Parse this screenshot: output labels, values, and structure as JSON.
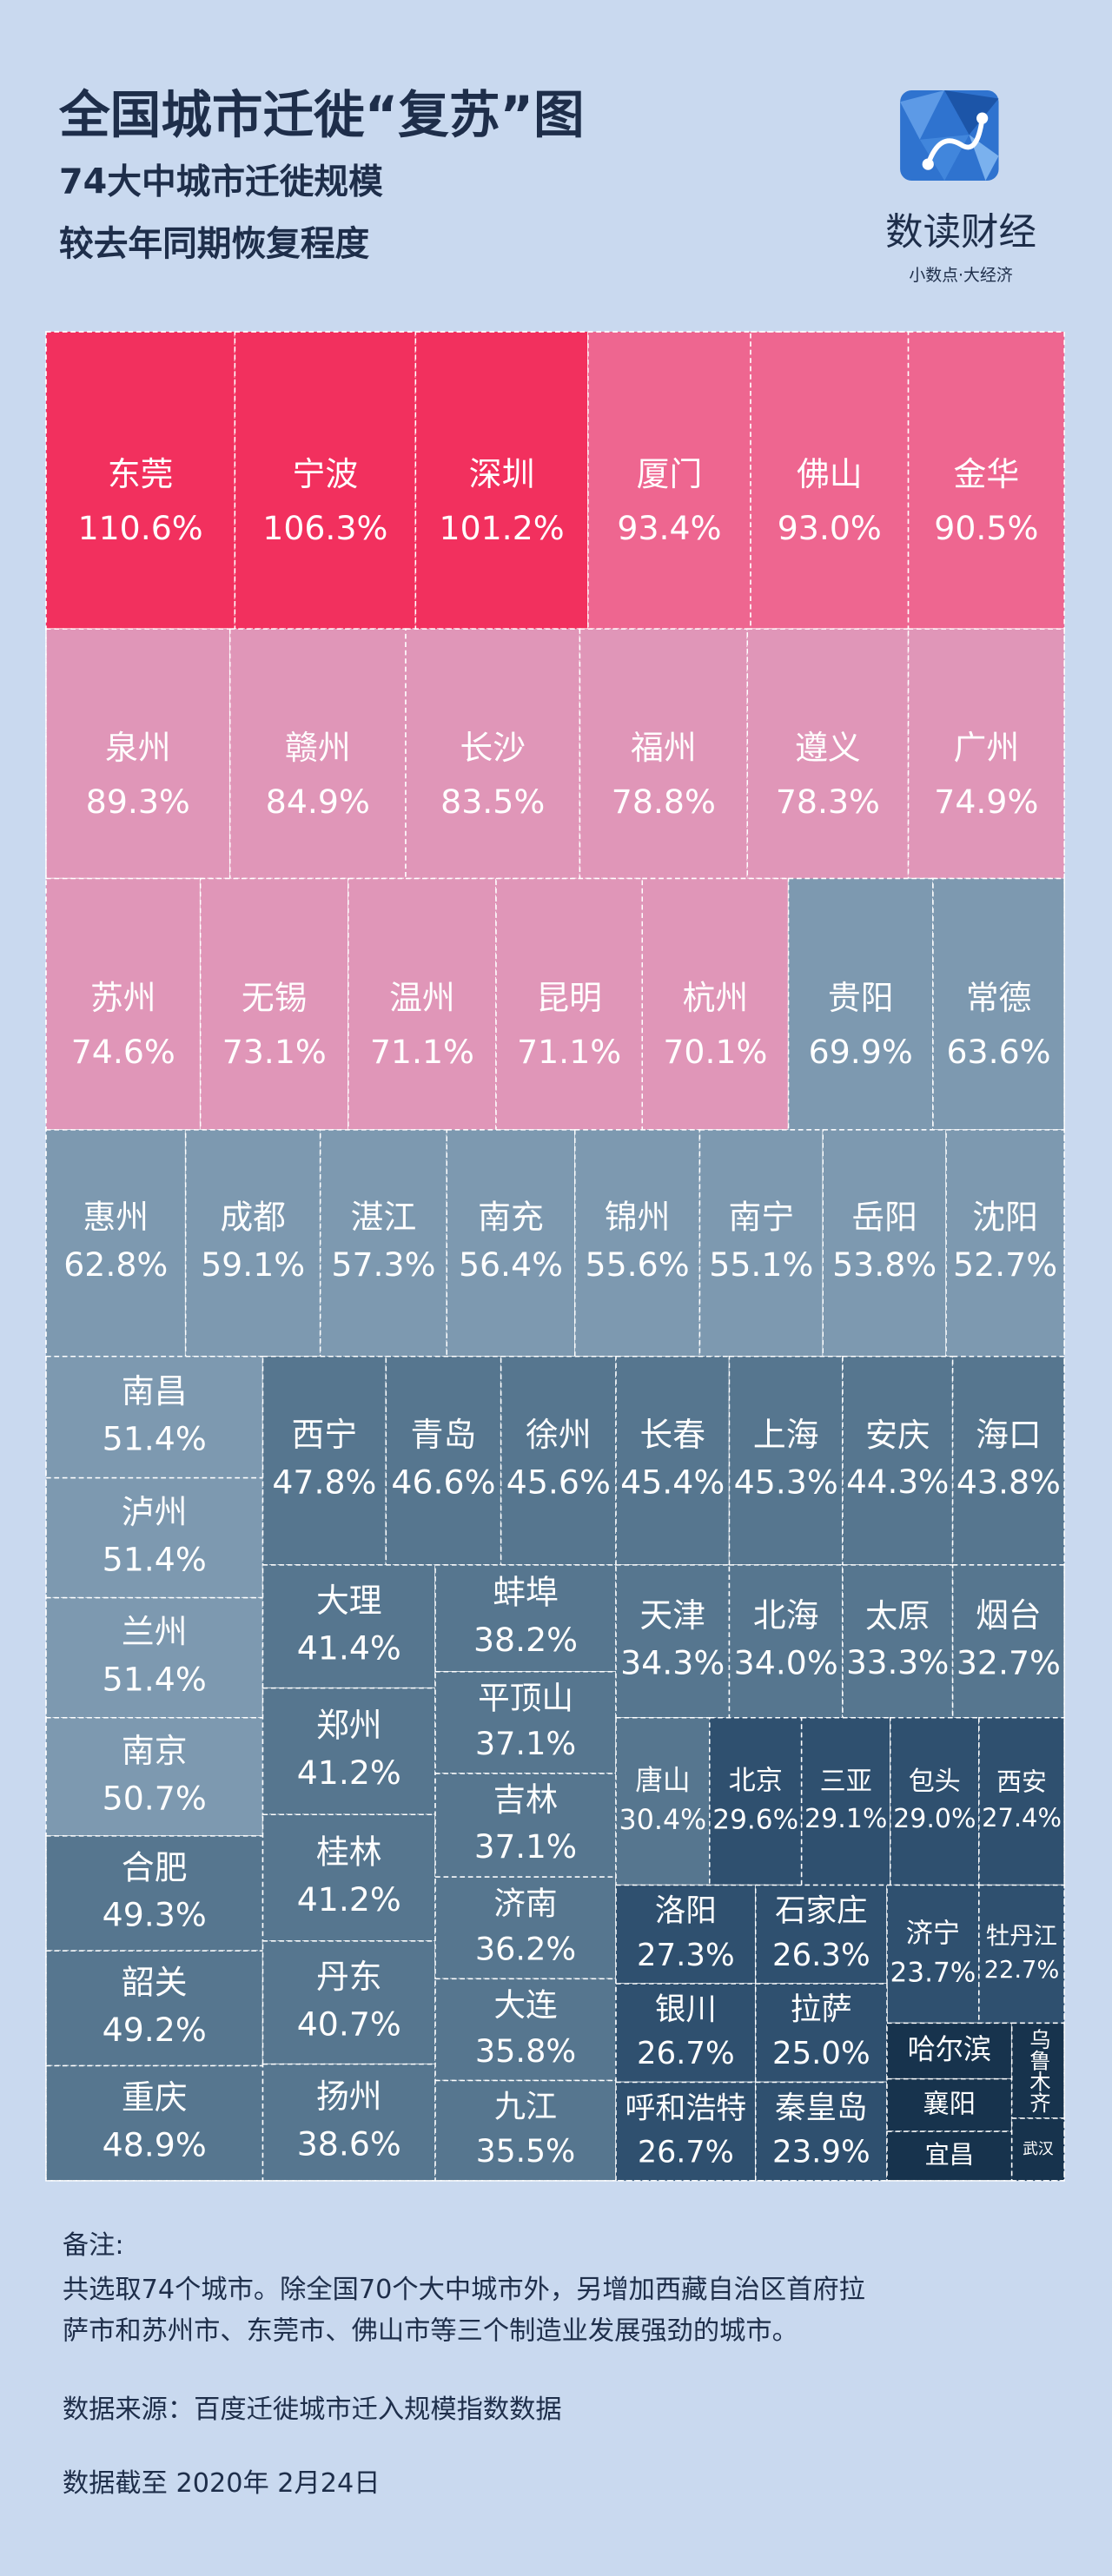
{
  "chart_data": {
    "type": "treemap",
    "title": "全国城市迁徙“复苏”图",
    "subtitle": [
      "74大中城市迁徙规模",
      "较去年同期恢复程度"
    ],
    "categories": [
      "东莞",
      "宁波",
      "深圳",
      "厦门",
      "佛山",
      "金华",
      "泉州",
      "赣州",
      "长沙",
      "福州",
      "遵义",
      "广州",
      "苏州",
      "无锡",
      "温州",
      "昆明",
      "杭州",
      "贵阳",
      "常德",
      "惠州",
      "成都",
      "湛江",
      "南充",
      "锦州",
      "南宁",
      "岳阳",
      "沈阳",
      "南昌",
      "泸州",
      "兰州",
      "南京",
      "合肥",
      "韶关",
      "重庆",
      "西宁",
      "青岛",
      "徐州",
      "长春",
      "上海",
      "安庆",
      "海口",
      "大理",
      "郑州",
      "桂林",
      "丹东",
      "扬州",
      "蚌埠",
      "平顶山",
      "吉林",
      "济南",
      "大连",
      "九江",
      "天津",
      "北海",
      "太原",
      "烟台",
      "唐山",
      "北京",
      "三亚",
      "包头",
      "西安",
      "洛阳",
      "石家庄",
      "济宁",
      "牡丹江",
      "银川",
      "拉萨",
      "呼和浩特",
      "秦皇岛",
      "哈尔滨",
      "襄阳",
      "宜昌",
      "乌鲁木齐",
      "武汉"
    ],
    "values": [
      110.6,
      106.3,
      101.2,
      93.4,
      93.0,
      90.5,
      89.3,
      84.9,
      83.5,
      78.8,
      78.3,
      74.9,
      74.6,
      73.1,
      71.1,
      71.1,
      70.1,
      69.9,
      63.6,
      62.8,
      59.1,
      57.3,
      56.4,
      55.6,
      55.1,
      53.8,
      52.7,
      51.4,
      51.4,
      51.4,
      50.7,
      49.3,
      49.2,
      48.9,
      47.8,
      46.6,
      45.6,
      45.4,
      45.3,
      44.3,
      43.8,
      41.4,
      41.2,
      41.2,
      40.7,
      38.6,
      38.2,
      37.1,
      37.1,
      36.2,
      35.8,
      35.5,
      34.3,
      34.0,
      33.3,
      32.7,
      30.4,
      29.6,
      29.1,
      29.0,
      27.4,
      27.3,
      26.3,
      23.7,
      22.7,
      26.7,
      25.0,
      26.7,
      23.9,
      20,
      15,
      14,
      18,
      5
    ],
    "value_labels": [
      "110.6%",
      "106.3%",
      "101.2%",
      "93.4%",
      "93.0%",
      "90.5%",
      "89.3%",
      "84.9%",
      "83.5%",
      "78.8%",
      "78.3%",
      "74.9%",
      "74.6%",
      "73.1%",
      "71.1%",
      "71.1%",
      "70.1%",
      "69.9%",
      "63.6%",
      "62.8%",
      "59.1%",
      "57.3%",
      "56.4%",
      "55.6%",
      "55.1%",
      "53.8%",
      "52.7%",
      "51.4%",
      "51.4%",
      "51.4%",
      "50.7%",
      "49.3%",
      "49.2%",
      "48.9%",
      "47.8%",
      "46.6%",
      "45.6%",
      "45.4%",
      "45.3%",
      "44.3%",
      "43.8%",
      "41.4%",
      "41.2%",
      "41.2%",
      "40.7%",
      "38.6%",
      "38.2%",
      "37.1%",
      "37.1%",
      "36.2%",
      "35.8%",
      "35.5%",
      "34.3%",
      "34.0%",
      "33.3%",
      "32.7%",
      "30.4%",
      "29.6%",
      "29.1%",
      "29.0%",
      "27.4%",
      "27.3%",
      "26.3%",
      "23.7%",
      "22.7%",
      "26.7%",
      "25.0%",
      "26.7%",
      "23.9%",
      null,
      null,
      null,
      null,
      null
    ],
    "colors": [
      "#f2305e",
      "#f2305e",
      "#f2305e",
      "#ee6690",
      "#ee6690",
      "#ee6690",
      "#e096b8",
      "#e096b8",
      "#e096b8",
      "#e096b8",
      "#e096b8",
      "#e096b8",
      "#e096b8",
      "#e096b8",
      "#e096b8",
      "#e096b8",
      "#e096b8",
      "#7d99b0",
      "#7d99b0",
      "#7d99b0",
      "#7d99b0",
      "#7d99b0",
      "#7d99b0",
      "#7d99b0",
      "#7d99b0",
      "#7d99b0",
      "#7d99b0",
      "#7d99b0",
      "#7d99b0",
      "#7d99b0",
      "#7d99b0",
      "#56768f",
      "#56768f",
      "#56768f",
      "#56768f",
      "#56768f",
      "#56768f",
      "#56768f",
      "#56768f",
      "#56768f",
      "#56768f",
      "#56768f",
      "#56768f",
      "#56768f",
      "#56768f",
      "#56768f",
      "#56768f",
      "#56768f",
      "#56768f",
      "#56768f",
      "#56768f",
      "#56768f",
      "#56768f",
      "#56768f",
      "#56768f",
      "#56768f",
      "#56768f",
      "#2f506f",
      "#2f506f",
      "#2f506f",
      "#2f506f",
      "#2f506f",
      "#2f506f",
      "#2f506f",
      "#2f506f",
      "#2f506f",
      "#2f506f",
      "#2f506f",
      "#2f506f",
      "#17334d",
      "#17334d",
      "#17334d",
      "#17334d",
      "#17334d"
    ]
  },
  "brand": {
    "name": "数读财经",
    "slogan": "小数点·大经济"
  },
  "notes": {
    "heading": "备注:",
    "lines": [
      "共选取74个城市。除全国70个大中城市外，另增加西藏自治区首府拉",
      "萨市和苏州市、东莞市、佛山市等三个制造业发展强劲的城市。"
    ],
    "source": "数据来源：百度迁徙城市迁入规模指数数据",
    "date": "数据截至 2020年 2月24日"
  }
}
